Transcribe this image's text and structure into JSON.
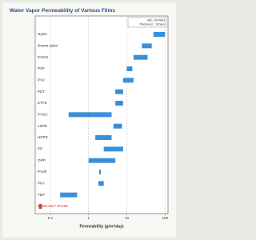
{
  "chart_data": {
    "type": "range-bar",
    "title": "Water Vapor Permeability of Various Films",
    "annotation": [
      "40C, 90%RH",
      "Thickness : 100μm"
    ],
    "x_label": "Permeability (g/m²/day)",
    "log_x": true,
    "grid": true,
    "categories": [
      "Nylon",
      "Drawn nylon",
      "EVOH",
      "PVF",
      "PVC",
      "PET",
      "ETFE",
      "PVDC",
      "LDPE",
      "HDPE",
      "PP",
      "OPP",
      "PVdF",
      "PFA",
      "FEP",
      "NEOFLON™ PCTFE"
    ],
    "values": [
      [
        50,
        100
      ],
      [
        25,
        45
      ],
      [
        15,
        35
      ],
      [
        10,
        14
      ],
      [
        8,
        15
      ],
      [
        5,
        8
      ],
      [
        5,
        8
      ],
      [
        0.3,
        4
      ],
      [
        4.5,
        7.5
      ],
      [
        1.5,
        4
      ],
      [
        2.5,
        8
      ],
      [
        1,
        5
      ],
      [
        1.9,
        2.1
      ],
      [
        1.8,
        2.5
      ],
      [
        0.18,
        0.5
      ],
      [
        0.05,
        0.06
      ]
    ],
    "colors": [
      "#3b8fd8",
      "#3b8fd8",
      "#3b8fd8",
      "#3b8fd8",
      "#3b8fd8",
      "#3b8fd8",
      "#3b8fd8",
      "#3b8fd8",
      "#3b8fd8",
      "#3b8fd8",
      "#3b8fd8",
      "#3b8fd8",
      "#3b8fd8",
      "#3b8fd8",
      "#3b8fd8",
      "#c8453a"
    ],
    "label_colors": [
      "#333333",
      "#333333",
      "#333333",
      "#333333",
      "#333333",
      "#333333",
      "#333333",
      "#333333",
      "#333333",
      "#333333",
      "#333333",
      "#333333",
      "#333333",
      "#333333",
      "#333333",
      "#c8453a"
    ],
    "xlim": [
      0.04,
      120
    ],
    "xticks": [
      0.1,
      1,
      10,
      100
    ]
  }
}
